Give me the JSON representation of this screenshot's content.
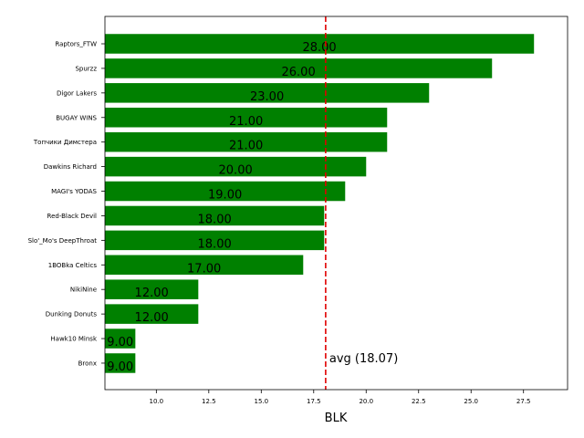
{
  "chart_data": {
    "type": "barh",
    "xlabel": "BLK",
    "categories": [
      "Raptors_FTW",
      "Spurzz",
      "Digor Lakers",
      "BUGAY WINS",
      "Топчики Димстера",
      "Dawkins Richard",
      "MAGI's YODAS",
      "Red-Black Devil",
      "Slo'_Mo's DeepThroat",
      "1BOBka Celtics",
      "NikiNine",
      "Dunking Donuts",
      "Hawk10 Minsk",
      "Bronx"
    ],
    "values": [
      28,
      26,
      23,
      21,
      21,
      20,
      19,
      18,
      18,
      17,
      12,
      12,
      9,
      9
    ],
    "value_labels": [
      "28.00",
      "26.00",
      "23.00",
      "21.00",
      "21.00",
      "20.00",
      "19.00",
      "18.00",
      "18.00",
      "17.00",
      "12.00",
      "12.00",
      "9.00",
      "9.00"
    ],
    "color": "#008000",
    "xlim": [
      7.55,
      29.6
    ],
    "xticks": [
      {
        "value": 10,
        "label": "10.0"
      },
      12.5,
      {
        "value": 15,
        "label": "15.0"
      },
      17.5,
      {
        "value": 20,
        "label": "20.0"
      },
      22.5,
      {
        "value": 25,
        "label": "25.0"
      },
      27.5
    ],
    "average": 18.07,
    "average_color": "#e00000",
    "average_label": "avg (18.07)"
  }
}
